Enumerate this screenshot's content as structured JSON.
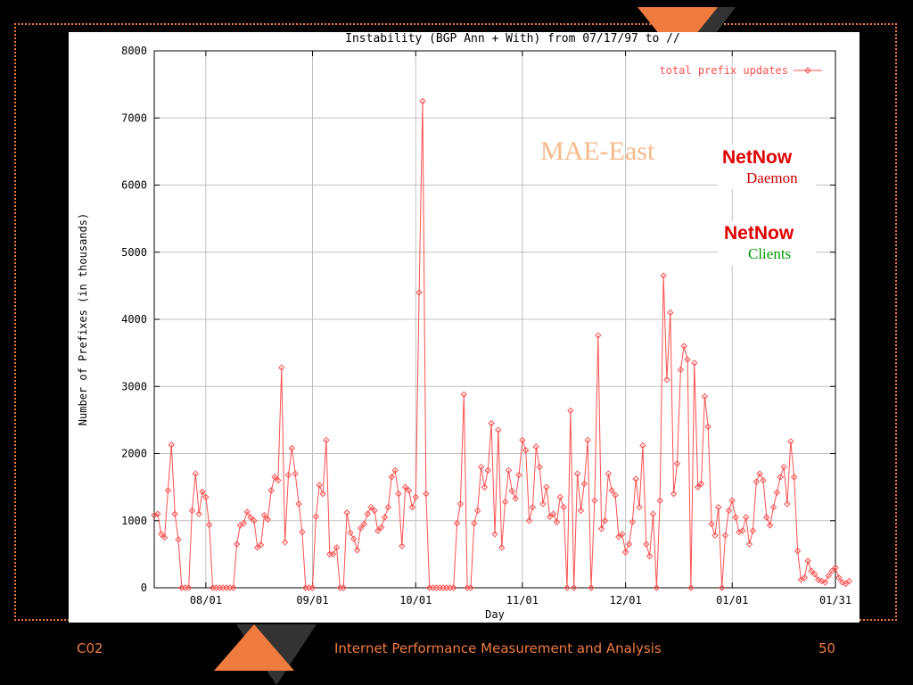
{
  "colors": {
    "background": "#000000",
    "accent": "#f07b3f",
    "series": "#ff5050",
    "netnow": "#e00000",
    "daemon": "#cc0000",
    "clients": "#009900",
    "mae": "#f5b98a"
  },
  "slide": {
    "course": "C02",
    "footer_title": "Internet Performance Measurement and Analysis",
    "page": "50"
  },
  "annotations": {
    "mae_east": "MAE-East",
    "netnow1": "NetNow",
    "daemon": "Daemon",
    "netnow2": "NetNow",
    "clients": "Clients"
  },
  "chart_data": {
    "type": "line",
    "title": "Instability (BGP Ann + With) from 07/17/97 to //",
    "xlabel": "Day",
    "ylabel": "Number of Prefixes (in thousands)",
    "ylim": [
      0,
      8000
    ],
    "yticks": [
      0,
      1000,
      2000,
      3000,
      4000,
      5000,
      6000,
      7000,
      8000
    ],
    "xlim": [
      "1997-07-17",
      "1998-01-31"
    ],
    "xticks": [
      {
        "label": "08/01",
        "date": "1997-08-01"
      },
      {
        "label": "09/01",
        "date": "1997-09-01"
      },
      {
        "label": "10/01",
        "date": "1997-10-01"
      },
      {
        "label": "11/01",
        "date": "1997-11-01"
      },
      {
        "label": "12/01",
        "date": "1997-12-01"
      },
      {
        "label": "01/01",
        "date": "1998-01-01"
      },
      {
        "label": "01/31",
        "date": "1998-01-31"
      }
    ],
    "grid": true,
    "legend": "top-right",
    "series": [
      {
        "name": "total prefix updates",
        "start_date": "1997-07-17",
        "values": [
          1080,
          1100,
          800,
          750,
          1450,
          2130,
          1100,
          720,
          0,
          0,
          0,
          1150,
          1700,
          1100,
          1430,
          1350,
          940,
          0,
          0,
          0,
          0,
          0,
          0,
          0,
          650,
          930,
          960,
          1130,
          1050,
          1000,
          600,
          640,
          1080,
          1020,
          1450,
          1650,
          1600,
          3280,
          680,
          1680,
          2080,
          1700,
          1250,
          830,
          0,
          0,
          0,
          1060,
          1530,
          1400,
          2200,
          500,
          500,
          600,
          0,
          0,
          1120,
          820,
          730,
          560,
          890,
          950,
          1100,
          1200,
          1150,
          850,
          900,
          1050,
          1200,
          1650,
          1750,
          1400,
          620,
          1500,
          1450,
          1200,
          1350,
          4400,
          7250,
          1400,
          0,
          0,
          0,
          0,
          0,
          0,
          0,
          0,
          960,
          1250,
          2880,
          0,
          0,
          960,
          1150,
          1800,
          1500,
          1750,
          2450,
          800,
          2350,
          600,
          1280,
          1750,
          1440,
          1330,
          1680,
          2200,
          2050,
          1000,
          1200,
          2100,
          1800,
          1250,
          1500,
          1060,
          1100,
          980,
          1350,
          1200,
          0,
          2640,
          0,
          1700,
          1150,
          1550,
          2200,
          0,
          1300,
          3760,
          880,
          1000,
          1700,
          1450,
          1380,
          760,
          800,
          530,
          650,
          980,
          1620,
          1200,
          2120,
          650,
          470,
          1100,
          0,
          1300,
          4650,
          3100,
          4100,
          1400,
          1850,
          3250,
          3600,
          3400,
          0,
          3350,
          1500,
          1550,
          2850,
          2400,
          950,
          780,
          1200,
          0,
          780,
          1150,
          1300,
          1050,
          830,
          850,
          1050,
          650,
          850,
          1580,
          1700,
          1600,
          1050,
          930,
          1200,
          1420,
          1650,
          1800,
          1250,
          2180,
          1650,
          550,
          120,
          150,
          400,
          250,
          200,
          120,
          100,
          80,
          180,
          250,
          300,
          150,
          80,
          60,
          100
        ]
      }
    ]
  }
}
